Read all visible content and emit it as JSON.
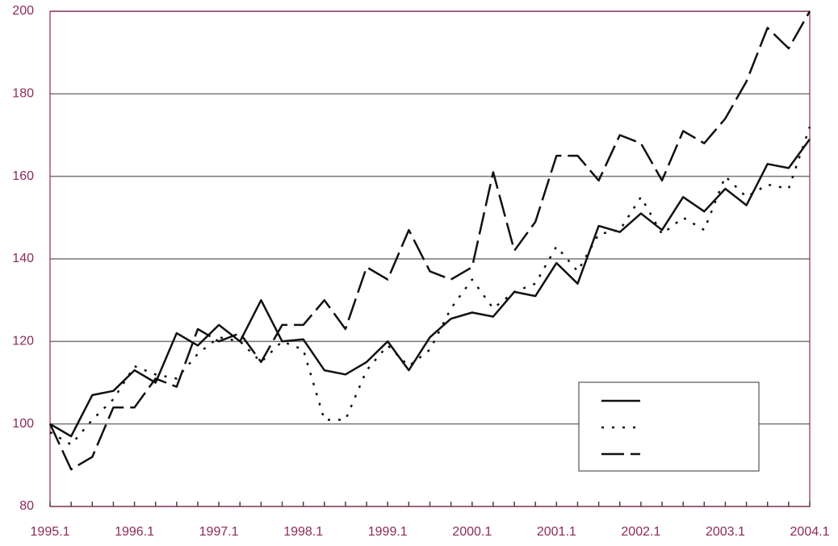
{
  "chart_data": {
    "type": "line",
    "categories": [
      "1995.1",
      null,
      null,
      null,
      "1996.1",
      null,
      null,
      null,
      "1997.1",
      null,
      null,
      null,
      "1998.1",
      null,
      null,
      null,
      "1999.1",
      null,
      null,
      null,
      "2000.1",
      null,
      null,
      null,
      "2001.1",
      null,
      null,
      null,
      "2002.1",
      null,
      null,
      null,
      "2003.1",
      null,
      null,
      null,
      "2004.1"
    ],
    "series": [
      {
        "color": "#111111",
        "dash": "solid",
        "values": [
          100,
          97,
          107,
          108,
          113,
          110,
          122,
          119,
          124,
          120,
          130,
          120,
          120.5,
          113,
          112,
          115,
          120,
          113,
          121,
          125.5,
          127,
          126,
          132,
          131,
          139,
          134,
          148,
          146.5,
          151,
          147,
          155,
          151.5,
          157,
          153,
          163,
          162,
          169
        ]
      },
      {
        "color": "#111111",
        "dash": "dotted",
        "values": [
          98,
          95,
          101,
          106,
          114,
          112,
          111,
          117,
          121,
          120,
          115,
          120,
          118,
          101,
          101,
          113,
          119,
          114,
          118,
          128,
          135,
          128,
          132,
          134,
          143,
          137,
          146,
          147,
          155,
          146,
          150,
          147,
          160,
          155,
          158,
          157,
          172
        ]
      },
      {
        "color": "#111111",
        "dash": "dashed",
        "values": [
          100,
          89,
          92,
          104,
          104,
          111,
          109,
          123,
          120,
          122,
          115,
          124,
          124,
          130,
          123,
          138,
          135,
          147,
          137,
          135,
          138,
          161,
          142,
          149,
          165,
          165,
          159,
          170,
          168,
          159,
          171,
          168,
          174,
          183,
          196,
          191,
          200
        ]
      }
    ],
    "ylim": [
      80,
      200
    ],
    "yticks": [
      80,
      100,
      120,
      140,
      160,
      180,
      200
    ],
    "grid": true,
    "legend": "lower right"
  }
}
